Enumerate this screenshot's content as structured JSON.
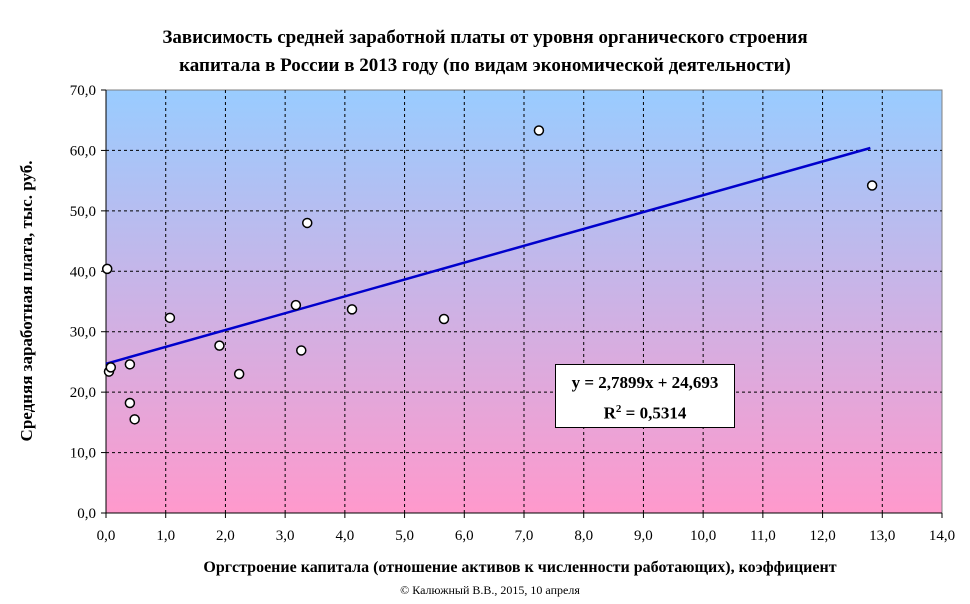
{
  "chart_data": {
    "type": "scatter",
    "title_line1": "Зависимость средней заработной платы от уровня органического строения",
    "title_line2": "капитала в России в 2013 году (по видам экономической деятельности)",
    "xlabel": "Оргстроение капитала (отношение активов к численности работающих), коэффициент",
    "ylabel": "Средняя заработная плата, тыс. руб.",
    "xlim": [
      0,
      14
    ],
    "ylim": [
      0,
      70
    ],
    "x_ticks": [
      "0,0",
      "1,0",
      "2,0",
      "3,0",
      "4,0",
      "5,0",
      "6,0",
      "7,0",
      "8,0",
      "9,0",
      "10,0",
      "11,0",
      "12,0",
      "13,0",
      "14,0"
    ],
    "y_ticks": [
      "0,0",
      "10,0",
      "20,0",
      "30,0",
      "40,0",
      "50,0",
      "60,0",
      "70,0"
    ],
    "grid": true,
    "background_gradient": {
      "top": "#99ccff",
      "bottom": "#ff99cc"
    },
    "point_color": "#ffffff",
    "trend_color": "#0000cc",
    "points": [
      {
        "x": 0.02,
        "y": 40.4
      },
      {
        "x": 0.05,
        "y": 23.4
      },
      {
        "x": 0.08,
        "y": 24.1
      },
      {
        "x": 0.4,
        "y": 24.6
      },
      {
        "x": 0.4,
        "y": 18.2
      },
      {
        "x": 0.48,
        "y": 15.5
      },
      {
        "x": 1.07,
        "y": 32.3
      },
      {
        "x": 1.9,
        "y": 27.7
      },
      {
        "x": 2.23,
        "y": 23.0
      },
      {
        "x": 3.18,
        "y": 34.4
      },
      {
        "x": 3.27,
        "y": 26.9
      },
      {
        "x": 3.37,
        "y": 48.0
      },
      {
        "x": 4.12,
        "y": 33.7
      },
      {
        "x": 5.66,
        "y": 32.1
      },
      {
        "x": 7.25,
        "y": 63.3
      },
      {
        "x": 12.83,
        "y": 54.2
      }
    ],
    "trendline": {
      "slope": 2.7899,
      "intercept": 24.693,
      "x_start": 0,
      "x_end": 12.8
    },
    "equation": "y = 2,7899x + 24,693",
    "r2_label": "R",
    "r2_sup": "2",
    "r2_value": " = 0,5314"
  },
  "copyright": "© Калюжный В.В., 2015, 10 апреля"
}
